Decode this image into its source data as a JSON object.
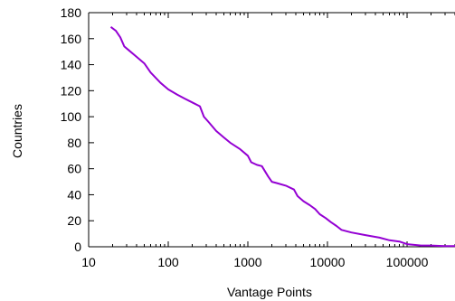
{
  "chart_data": {
    "type": "line",
    "title": "",
    "xlabel": "Vantage Points",
    "ylabel": "Countries",
    "xscale": "log",
    "xlim": [
      10,
      400000
    ],
    "ylim": [
      0,
      180
    ],
    "xticks": [
      10,
      100,
      1000,
      10000,
      100000
    ],
    "xtick_labels": [
      "10",
      "100",
      "1000",
      "10000",
      "100000"
    ],
    "yticks": [
      0,
      20,
      40,
      60,
      80,
      100,
      120,
      140,
      160,
      180
    ],
    "ytick_labels": [
      "0",
      "20",
      "40",
      "60",
      "80",
      "100",
      "120",
      "140",
      "160",
      "180"
    ],
    "grid": false,
    "series": [
      {
        "color": "#9400d3",
        "x": [
          19,
          22,
          25,
          28,
          32,
          40,
          50,
          60,
          80,
          100,
          130,
          160,
          200,
          250,
          280,
          320,
          400,
          500,
          600,
          800,
          1000,
          1100,
          1300,
          1500,
          1800,
          2000,
          2300,
          3000,
          3800,
          4200,
          5000,
          6000,
          7000,
          8000,
          9500,
          11000,
          13000,
          15000,
          20000,
          30000,
          45000,
          60000,
          80000,
          100000,
          150000,
          200000,
          300000,
          400000
        ],
        "y": [
          169,
          166,
          161,
          154,
          151,
          146,
          141,
          134,
          126,
          121,
          117,
          114,
          111,
          108,
          100,
          96,
          89,
          84,
          80,
          75,
          70,
          65,
          63,
          62,
          54,
          50,
          49,
          47,
          44,
          39,
          35,
          32,
          29,
          25,
          22,
          19,
          16,
          13,
          11,
          9,
          7,
          5,
          4,
          2,
          1,
          1,
          0.5,
          0.5
        ]
      }
    ]
  }
}
